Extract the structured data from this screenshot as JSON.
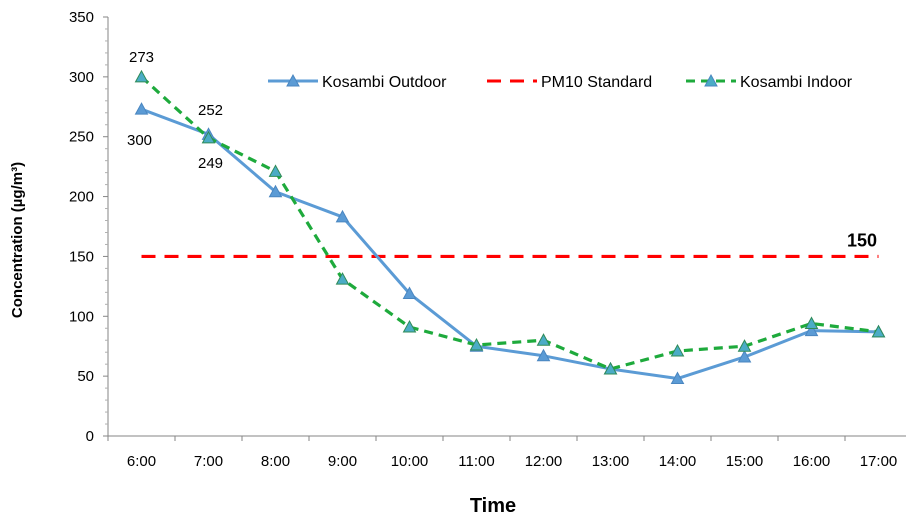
{
  "chart_data": {
    "type": "line",
    "xlabel": "Time",
    "ylabel": "Concentration  (µg/m³)",
    "categories": [
      "6:00",
      "7:00",
      "8:00",
      "9:00",
      "10:00",
      "11:00",
      "12:00",
      "13:00",
      "14:00",
      "15:00",
      "16:00",
      "17:00"
    ],
    "ylim": [
      0,
      350
    ],
    "yticks": [
      0,
      50,
      100,
      150,
      200,
      250,
      300,
      350
    ],
    "legend_position": "top-right",
    "series": [
      {
        "name": "Kosambi Outdoor",
        "color": "#5B9BD5",
        "style": "solid",
        "marker": "triangle",
        "values": [
          273,
          252,
          204,
          183,
          119,
          75,
          67,
          56,
          48,
          66,
          88,
          87
        ]
      },
      {
        "name": "PM10 Standard",
        "color": "#FF0000",
        "style": "dashed",
        "marker": "none",
        "values": [
          150,
          150,
          150,
          150,
          150,
          150,
          150,
          150,
          150,
          150,
          150,
          150
        ]
      },
      {
        "name": "Kosambi Indoor",
        "color": "#1EAA3C",
        "style": "dashed",
        "marker": "triangle",
        "values": [
          300,
          249,
          221,
          131,
          91,
          76,
          80,
          56,
          71,
          75,
          94,
          87
        ]
      }
    ],
    "annotations": [
      {
        "text": "273",
        "category": "6:00",
        "near": "above"
      },
      {
        "text": "300",
        "category": "6:00",
        "near": "below"
      },
      {
        "text": "252",
        "category": "7:00",
        "near": "above"
      },
      {
        "text": "249",
        "category": "7:00",
        "near": "below"
      },
      {
        "text": "150",
        "category": "17:00",
        "near": "above"
      }
    ]
  }
}
